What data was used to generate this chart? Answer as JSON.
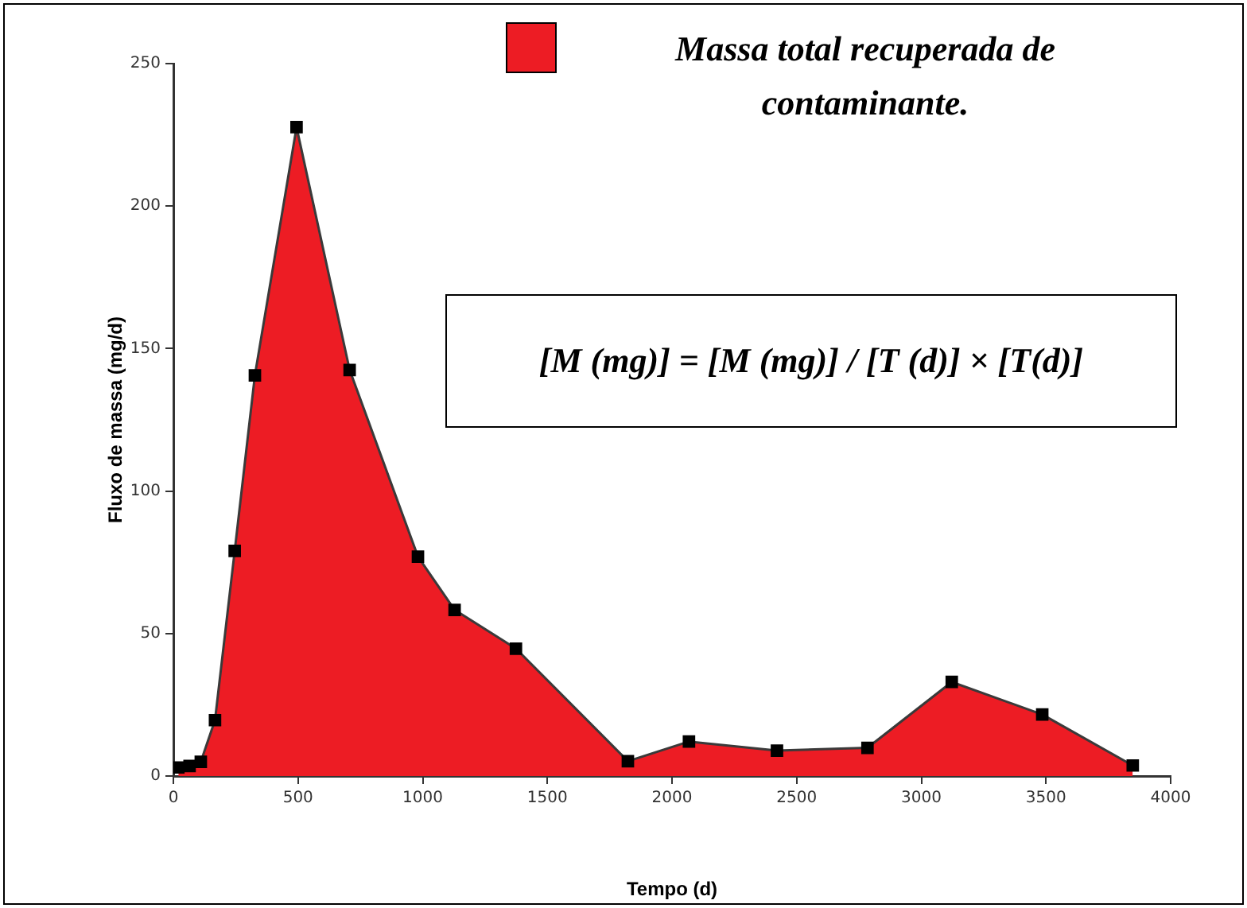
{
  "chart_data": {
    "type": "area",
    "xlabel": "Tempo (d)",
    "ylabel": "Fluxo de massa (mg/d)",
    "x": [
      20,
      65,
      110,
      167,
      246,
      327,
      494,
      707,
      981,
      1128,
      1374,
      1823,
      2068,
      2421,
      2784,
      3122,
      3485,
      3848
    ],
    "series": [
      {
        "name": "Massa total recuperada de contaminante.",
        "color": "#ed1c24",
        "values": [
          3,
          3.5,
          5,
          19.6,
          79,
          140.6,
          227.7,
          142.5,
          77,
          58.3,
          44.7,
          5.2,
          12.1,
          8.9,
          9.9,
          33,
          21.6,
          3.7
        ]
      }
    ],
    "xlim": [
      0,
      4000
    ],
    "xticks": [
      0,
      500,
      1000,
      1500,
      2000,
      2500,
      3000,
      3500,
      4000
    ],
    "ylim": [
      0,
      250
    ],
    "yticks": [
      0,
      50,
      100,
      150,
      200,
      250
    ],
    "grid": false,
    "legend": "top right",
    "marker": "square",
    "annotations": [
      "[M (mg)] = [M (mg)] / [T (d)] × [T(d)]"
    ]
  }
}
